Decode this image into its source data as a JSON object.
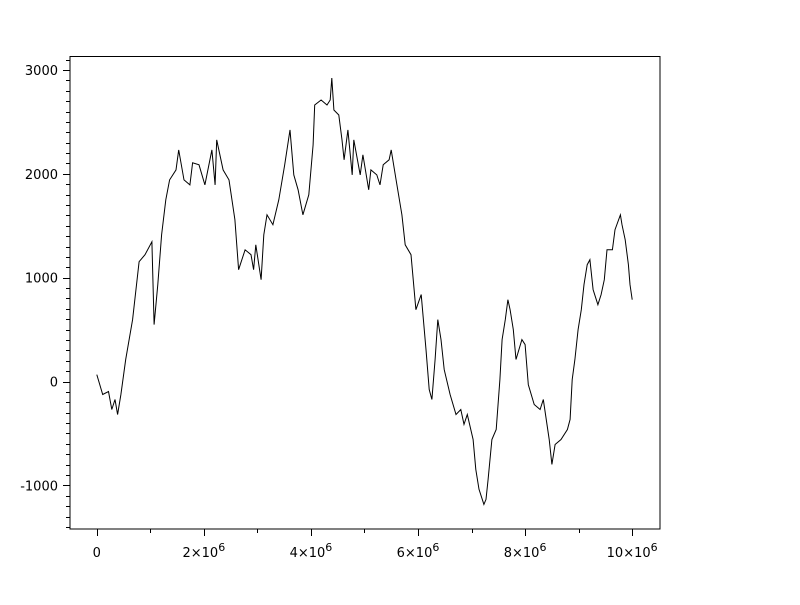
{
  "chart_data": {
    "type": "line",
    "title": "",
    "xlabel": "",
    "ylabel": "",
    "xlim": [
      -500000,
      10520000
    ],
    "ylim": [
      -1420,
      3130
    ],
    "grid": false,
    "line_color": "#000000",
    "x_ticks": [
      {
        "value": 0,
        "base": "0",
        "exp": ""
      },
      {
        "value": 2000000,
        "base": "2×10",
        "exp": "6"
      },
      {
        "value": 4000000,
        "base": "4×10",
        "exp": "6"
      },
      {
        "value": 6000000,
        "base": "6×10",
        "exp": "6"
      },
      {
        "value": 8000000,
        "base": "8×10",
        "exp": "6"
      },
      {
        "value": 10000000,
        "base": "10×10",
        "exp": "6"
      }
    ],
    "x_minor_step": 1000000,
    "y_ticks": [
      {
        "value": -1000,
        "label": "-1000"
      },
      {
        "value": 0,
        "label": "0"
      },
      {
        "value": 1000,
        "label": "1000"
      },
      {
        "value": 2000,
        "label": "2000"
      },
      {
        "value": 3000,
        "label": "3000"
      }
    ],
    "y_minor_step": 100,
    "series": [
      {
        "x": [
          0,
          110000.0,
          220000.0,
          280000.0,
          340000.0,
          390000.0,
          450000.0,
          540000.0,
          670000.0,
          790000.0,
          900000.0,
          1030000.0,
          1070000.0,
          1140000.0,
          1210000.0,
          1290000.0,
          1360000.0,
          1480000.0,
          1530000.0,
          1630000.0,
          1740000.0,
          1790000.0,
          1910000.0,
          2020000.0,
          2150000.0,
          2210000.0,
          2240000.0,
          2360000.0,
          2470000.0,
          2580000.0,
          2650000.0,
          2770000.0,
          2880000.0,
          2930000.0,
          2970000.0,
          3070000.0,
          3120000.0,
          3180000.0,
          3290000.0,
          3400000.0,
          3510000.0,
          3610000.0,
          3680000.0,
          3760000.0,
          3850000.0,
          3960000.0,
          4040000.0,
          4070000.0,
          4190000.0,
          4300000.0,
          4360000.0,
          4390000.0,
          4430000.0,
          4520000.0,
          4580000.0,
          4620000.0,
          4690000.0,
          4770000.0,
          4800000.0,
          4920000.0,
          4970000.0,
          5080000.0,
          5120000.0,
          5230000.0,
          5290000.0,
          5350000.0,
          5460000.0,
          5500000.0,
          5590000.0,
          5700000.0,
          5760000.0,
          5870000.0,
          5960000.0,
          6060000.0,
          6150000.0,
          6210000.0,
          6260000.0,
          6320000.0,
          6370000.0,
          6430000.0,
          6490000.0,
          6600000.0,
          6710000.0,
          6800000.0,
          6860000.0,
          6920000.0,
          7030000.0,
          7080000.0,
          7140000.0,
          7230000.0,
          7270000.0,
          7310000.0,
          7380000.0,
          7460000.0,
          7530000.0,
          7570000.0,
          7630000.0,
          7680000.0,
          7720000.0,
          7780000.0,
          7830000.0,
          7940000.0,
          8000000.0,
          8060000.0,
          8170000.0,
          8280000.0,
          8340000.0,
          8450000.0,
          8500000.0,
          8560000.0,
          8670000.0,
          8790000.0,
          8840000.0,
          8880000.0,
          8930000.0,
          8990000.0,
          9050000.0,
          9100000.0,
          9160000.0,
          9210000.0,
          9270000.0,
          9360000.0,
          9420000.0,
          9480000.0,
          9530000.0,
          9630000.0,
          9680000.0,
          9780000.0,
          9810000.0,
          9870000.0,
          9930000.0,
          9960000.0,
          10000000.0
        ],
        "y": [
          67,
          -125,
          -96,
          -269,
          -173,
          -317,
          -125,
          212,
          596,
          1154,
          1221,
          1346,
          548,
          933,
          1413,
          1750,
          1942,
          2038,
          2231,
          1942,
          1894,
          2106,
          2087,
          1894,
          2231,
          1894,
          2327,
          2038,
          1942,
          1558,
          1077,
          1269,
          1221,
          1077,
          1317,
          981,
          1413,
          1606,
          1510,
          1750,
          2087,
          2423,
          1990,
          1846,
          1606,
          1798,
          2279,
          2663,
          2711,
          2663,
          2711,
          2923,
          2615,
          2567,
          2327,
          2135,
          2423,
          1990,
          2327,
          1990,
          2183,
          1846,
          2038,
          1990,
          1894,
          2087,
          2135,
          2231,
          1942,
          1606,
          1317,
          1221,
          692,
          837,
          308,
          -77,
          -173,
          212,
          596,
          404,
          115,
          -125,
          -317,
          -269,
          -413,
          -317,
          -558,
          -846,
          -1038,
          -1183,
          -1135,
          -942,
          -558,
          -462,
          19,
          404,
          596,
          788,
          692,
          500,
          212,
          404,
          356,
          -29,
          -221,
          -269,
          -173,
          -558,
          -798,
          -606,
          -558,
          -462,
          -365,
          19,
          212,
          500,
          692,
          933,
          1125,
          1173,
          885,
          740,
          837,
          981,
          1269,
          1269,
          1462,
          1606,
          1510,
          1365,
          1125,
          933,
          788
        ]
      }
    ]
  }
}
